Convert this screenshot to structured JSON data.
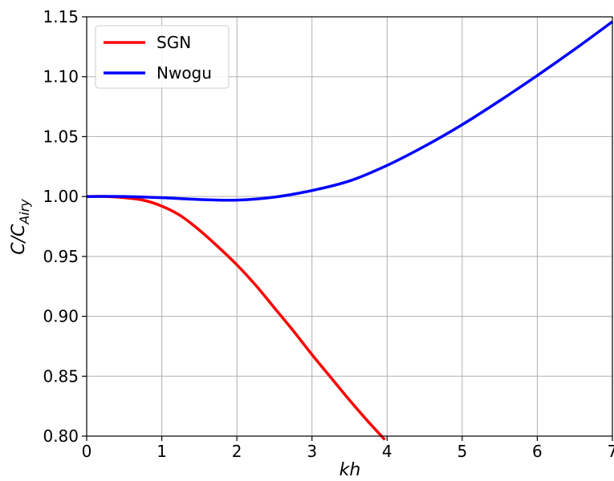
{
  "chart_data": {
    "type": "line",
    "title": "",
    "xlabel": "kh",
    "ylabel_main": "C/C",
    "ylabel_sub": "Airy",
    "xlim": [
      0,
      7
    ],
    "ylim": [
      0.8,
      1.15
    ],
    "xticks": [
      0,
      1,
      2,
      3,
      4,
      5,
      6,
      7
    ],
    "yticks": [
      0.8,
      0.85,
      0.9,
      0.95,
      1.0,
      1.05,
      1.1,
      1.15
    ],
    "xtick_labels": [
      "0",
      "1",
      "2",
      "3",
      "4",
      "5",
      "6",
      "7"
    ],
    "ytick_labels": [
      "0.80",
      "0.85",
      "0.90",
      "0.95",
      "1.00",
      "1.05",
      "1.10",
      "1.15"
    ],
    "grid": true,
    "legend_position": "top-left",
    "series": [
      {
        "name": "SGN",
        "color": "#ff0000",
        "x": [
          0,
          0.25,
          0.5,
          0.75,
          1.0,
          1.25,
          1.5,
          1.75,
          2.0,
          2.25,
          2.5,
          2.75,
          3.0,
          3.25,
          3.5,
          3.75,
          3.97
        ],
        "y": [
          1.0,
          1.0,
          0.999,
          0.997,
          0.992,
          0.984,
          0.972,
          0.958,
          0.943,
          0.926,
          0.907,
          0.888,
          0.868,
          0.849,
          0.83,
          0.812,
          0.797
        ]
      },
      {
        "name": "Nwogu",
        "color": "#0000ff",
        "x": [
          0,
          0.5,
          1.0,
          1.5,
          2.0,
          2.5,
          3.0,
          3.5,
          4.0,
          4.5,
          5.0,
          5.5,
          6.0,
          6.5,
          7.0
        ],
        "y": [
          1.0,
          1.0,
          0.999,
          0.9975,
          0.997,
          0.9995,
          1.005,
          1.013,
          1.026,
          1.042,
          1.06,
          1.08,
          1.101,
          1.123,
          1.146
        ]
      }
    ]
  }
}
